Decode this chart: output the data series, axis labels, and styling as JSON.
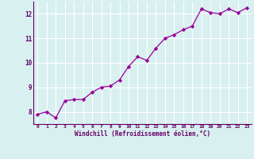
{
  "x": [
    0,
    1,
    2,
    3,
    4,
    5,
    6,
    7,
    8,
    9,
    10,
    11,
    12,
    13,
    14,
    15,
    16,
    17,
    18,
    19,
    20,
    21,
    22,
    23
  ],
  "y": [
    7.9,
    8.0,
    7.75,
    8.45,
    8.5,
    8.5,
    8.8,
    9.0,
    9.05,
    9.3,
    9.85,
    10.25,
    10.1,
    10.6,
    11.0,
    11.15,
    11.35,
    11.5,
    12.2,
    12.05,
    12.0,
    12.2,
    12.05,
    12.25
  ],
  "line_color": "#990099",
  "marker": "D",
  "marker_size": 2.2,
  "bg_color": "#d8f0f0",
  "grid_color": "#b8d8d8",
  "xlabel": "Windchill (Refroidissement éolien,°C)",
  "xlabel_color": "#660066",
  "tick_color": "#660066",
  "xlim": [
    -0.5,
    23.5
  ],
  "ylim": [
    7.5,
    12.5
  ],
  "yticks": [
    8,
    9,
    10,
    11,
    12
  ],
  "xticks": [
    0,
    1,
    2,
    3,
    4,
    5,
    6,
    7,
    8,
    9,
    10,
    11,
    12,
    13,
    14,
    15,
    16,
    17,
    18,
    19,
    20,
    21,
    22,
    23
  ],
  "xtick_labels": [
    "0",
    "1",
    "2",
    "3",
    "4",
    "5",
    "6",
    "7",
    "8",
    "9",
    "10",
    "11",
    "12",
    "13",
    "14",
    "15",
    "16",
    "17",
    "18",
    "19",
    "20",
    "21",
    "22",
    "23"
  ]
}
